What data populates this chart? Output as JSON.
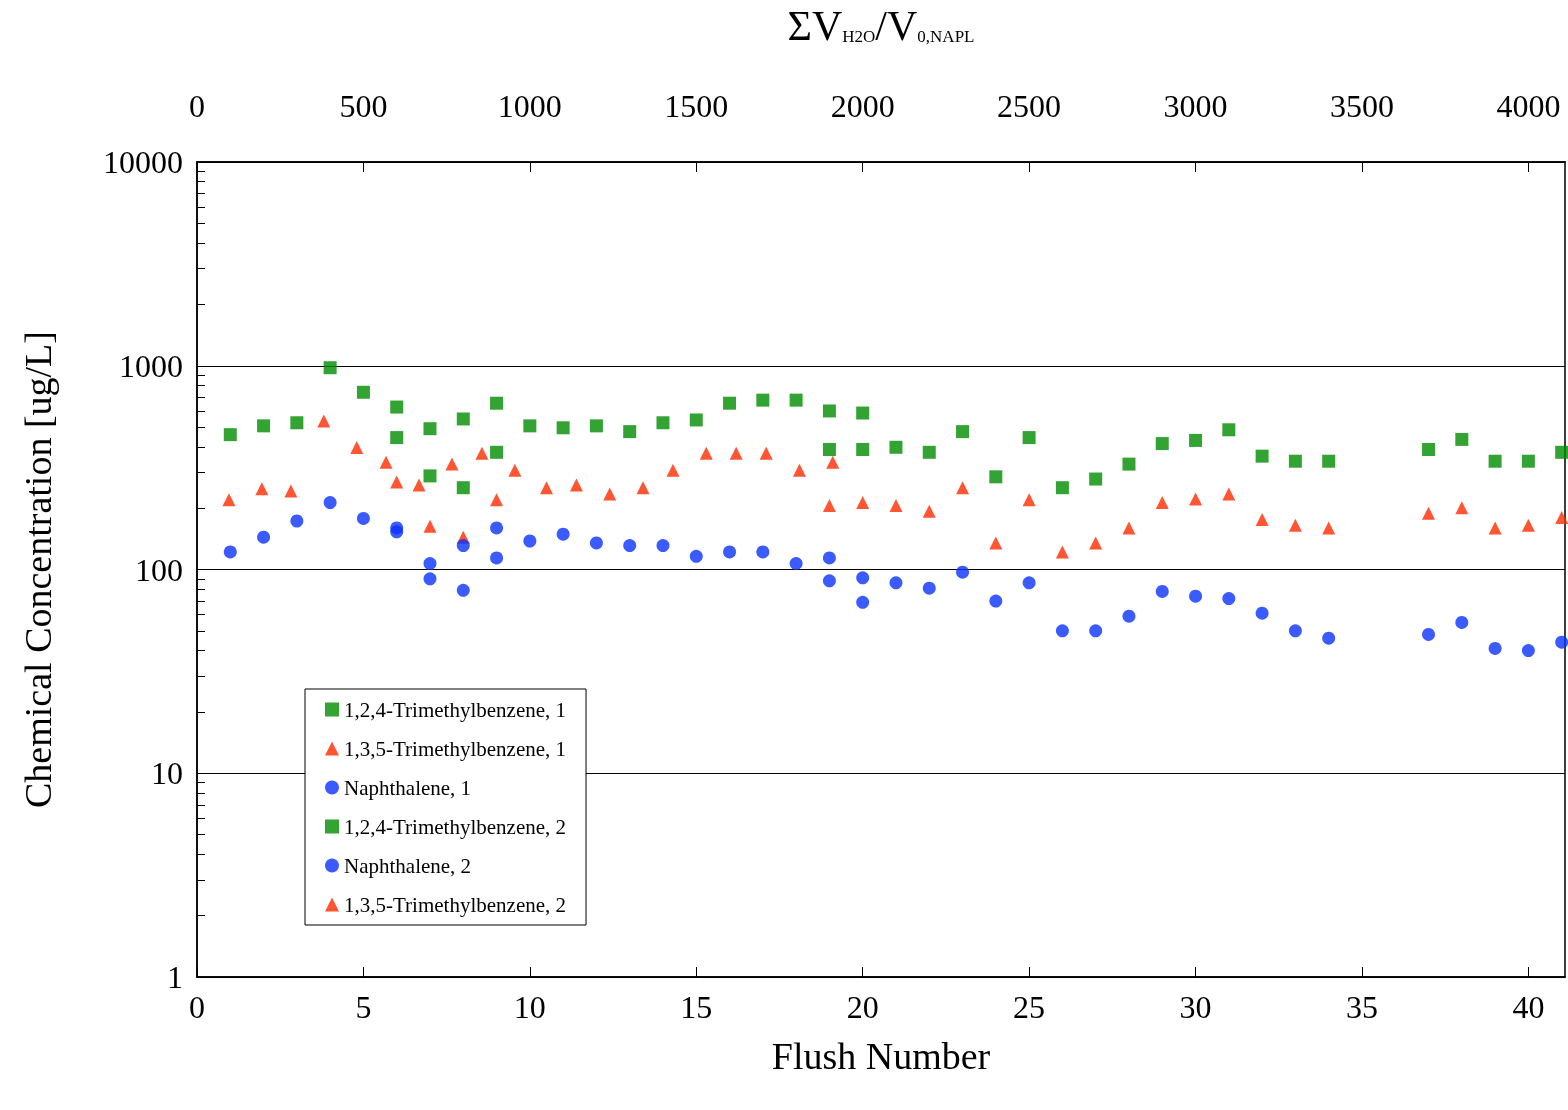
{
  "chart_data": {
    "type": "scatter",
    "xlabel": "Flush Number",
    "ylabel": "Chemical Concentration [ug/L]",
    "x2label": "ΣV$_{H2O}$/V$_{0,NAPL}$",
    "xlim": [
      0,
      41.1
    ],
    "xticks": [
      0,
      5,
      10,
      15,
      20,
      25,
      30,
      35,
      40
    ],
    "x2lim": [
      0,
      4110
    ],
    "x2ticks": [
      0,
      500,
      1000,
      1500,
      2000,
      2500,
      3000,
      3500,
      4000
    ],
    "ylim": [
      1,
      10000
    ],
    "yticks": [
      1,
      10,
      100,
      1000,
      10000
    ],
    "log": "y",
    "grid": "y",
    "legend": "bottom left",
    "series": [
      {
        "name": "1,2,4-Trimethylbenzene, 1",
        "color": "#008c00",
        "marker": "square",
        "x": [
          6,
          7,
          8,
          9,
          19,
          20,
          21,
          22,
          23,
          24,
          25,
          26,
          27,
          28,
          29,
          30,
          31,
          32,
          33,
          34,
          37,
          38,
          39,
          40,
          41
        ],
        "values": [
          444,
          288,
          252,
          376,
          388,
          388,
          398,
          376,
          475,
          285,
          444,
          252,
          278,
          329,
          415,
          430,
          485,
          360,
          340,
          340,
          388,
          435,
          340,
          340,
          376
        ]
      },
      {
        "name": "1,3,5-Trimethylbenzene, 1",
        "color": "#ff2a00",
        "marker": "triangle",
        "x": [
          6,
          7,
          8,
          9,
          19,
          20,
          21,
          22,
          23,
          24,
          25,
          26,
          27,
          28,
          29,
          30,
          31,
          32,
          33,
          34,
          37,
          38,
          39,
          40,
          41
        ],
        "values": [
          269,
          163,
          144,
          220,
          206,
          213,
          206,
          193,
          252,
          135,
          220,
          122,
          135,
          160,
          213,
          222,
          235,
          176,
          165,
          160,
          189,
          201,
          160,
          165,
          180
        ]
      },
      {
        "name": "Naphthalene, 1",
        "color": "#0a32ff",
        "marker": "circle",
        "x": [
          6,
          7,
          8,
          9,
          19,
          20,
          21,
          22,
          23,
          24,
          25,
          26,
          27,
          28,
          29,
          30,
          31,
          32,
          33,
          34,
          37,
          38,
          39,
          40,
          41
        ],
        "values": [
          153,
          90,
          79,
          114,
          88,
          91,
          86,
          81,
          97,
          70,
          86,
          50,
          50,
          59,
          78,
          74,
          72,
          61,
          50,
          46,
          48,
          55,
          41,
          40,
          44
        ]
      },
      {
        "name": "1,2,4-Trimethylbenzene, 2",
        "color": "#008c00",
        "marker": "square",
        "x": [
          1,
          2,
          3,
          4,
          5,
          6,
          7,
          8,
          9,
          10,
          11,
          12,
          13,
          14,
          15,
          16,
          17,
          18,
          19,
          20
        ],
        "values": [
          459,
          507,
          525,
          978,
          741,
          627,
          491,
          548,
          655,
          507,
          496,
          507,
          475,
          525,
          542,
          655,
          678,
          678,
          600,
          586
        ]
      },
      {
        "name": "Naphthalene, 2",
        "color": "#0a32ff",
        "marker": "circle",
        "x": [
          1,
          2,
          3,
          4,
          5,
          6,
          7,
          8,
          9,
          10,
          11,
          12,
          13,
          14,
          15,
          16,
          17,
          18,
          19,
          20
        ],
        "values": [
          122,
          144,
          173,
          213,
          178,
          160,
          107,
          131,
          160,
          138,
          149,
          135,
          131,
          131,
          116,
          122,
          122,
          107,
          114,
          69
        ]
      },
      {
        "name": "1,3,5-Trimethylbenzene, 2",
        "color": "#ff2a00",
        "marker": "triangle",
        "x": [
          0.96,
          1.95,
          2.82,
          3.81,
          4.8,
          5.68,
          6.67,
          7.66,
          8.56,
          9.55,
          10.5,
          11.4,
          12.4,
          13.4,
          14.3,
          15.3,
          16.2,
          17.1,
          18.1,
          19.1
        ],
        "values": [
          220,
          249,
          243,
          536,
          397,
          336,
          260,
          329,
          372,
          307,
          252,
          260,
          235,
          252,
          307,
          372,
          372,
          372,
          307,
          336
        ]
      }
    ]
  }
}
